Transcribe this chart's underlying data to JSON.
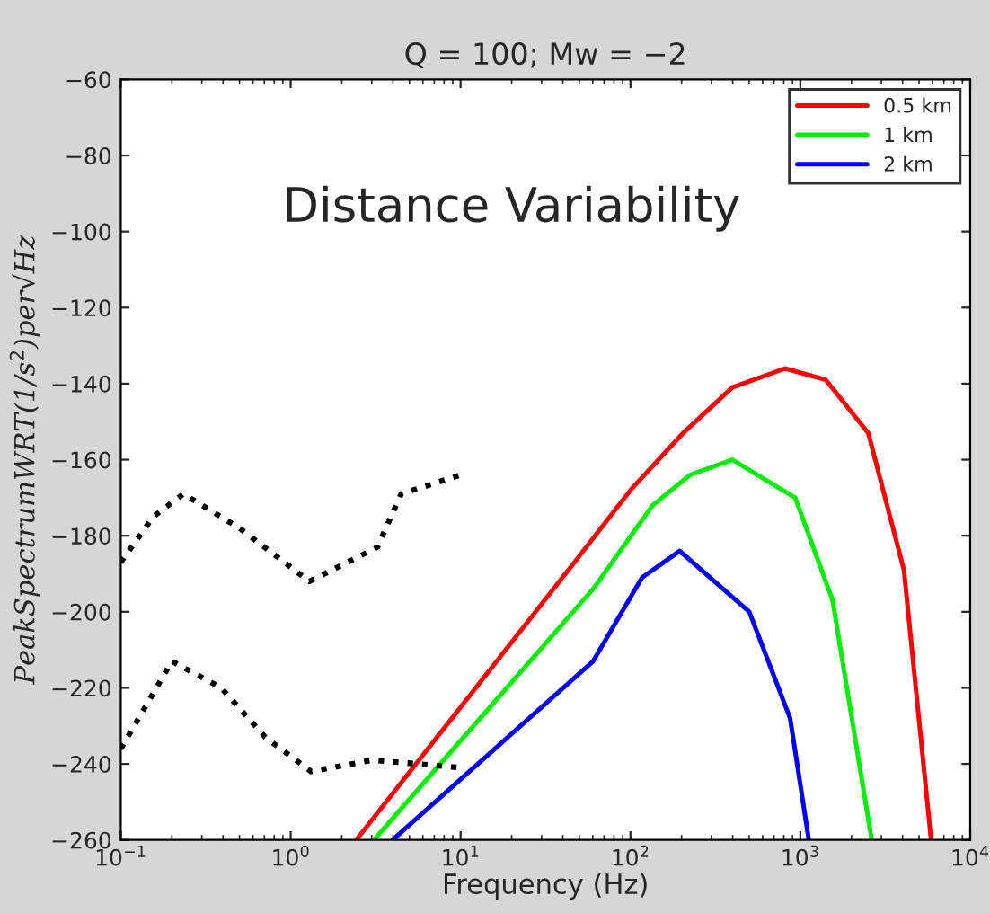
{
  "chart_data": {
    "type": "line",
    "title": "Q = 100; Mw = −2",
    "xlabel": "Frequency (Hz)",
    "ylabel": "PeakSpectrumWRT(1/s$^{2}$)per√Hz",
    "log": "x",
    "xlim": [
      0.1,
      10000
    ],
    "ylim": [
      -260,
      -60
    ],
    "xticks": [
      {
        "value": 0.1,
        "label": "10$^{−1}$"
      },
      {
        "value": 1,
        "label": "10$^{0}$"
      },
      {
        "value": 10,
        "label": "10$^{1}$"
      },
      {
        "value": 100,
        "label": "10$^{2}$"
      },
      {
        "value": 1000,
        "label": "10$^{3}$"
      },
      {
        "value": 10000,
        "label": "10$^{4}$"
      }
    ],
    "yticks": [
      {
        "value": -60,
        "label": "−60"
      },
      {
        "value": -80,
        "label": "−80"
      },
      {
        "value": -100,
        "label": "−100"
      },
      {
        "value": -120,
        "label": "−120"
      },
      {
        "value": -140,
        "label": "−140"
      },
      {
        "value": -160,
        "label": "−160"
      },
      {
        "value": -180,
        "label": "−180"
      },
      {
        "value": -200,
        "label": "−200"
      },
      {
        "value": -220,
        "label": "−220"
      },
      {
        "value": -240,
        "label": "−240"
      },
      {
        "value": -260,
        "label": "−260"
      }
    ],
    "grid": false,
    "legend": "top right",
    "marker": "none",
    "annotations": [
      "Distance Variability"
    ],
    "series": [
      {
        "name": "0.5 km",
        "color": "#ff0000",
        "line_style": "solid",
        "x": [
          2.43,
          5.25,
          46.8,
          100,
          204,
          398,
          813,
          1413,
          2512,
          4074,
          5888
        ],
        "values": [
          -260,
          -241,
          -187,
          -168,
          -153,
          -141,
          -136,
          -139,
          -153,
          -189,
          -260
        ]
      },
      {
        "name": "1 km",
        "color": "#00ee00",
        "line_style": "solid",
        "x": [
          3.09,
          60.3,
          135,
          224,
          398,
          933,
          1549,
          2630
        ],
        "values": [
          -260,
          -194,
          -172,
          -164,
          -160,
          -170,
          -197,
          -260
        ]
      },
      {
        "name": "2 km",
        "color": "#0000ff",
        "line_style": "solid",
        "x": [
          3.98,
          60.3,
          117,
          195,
          501,
          871,
          1122
        ],
        "values": [
          -260,
          -213,
          -191,
          -184,
          -200,
          -228,
          -260
        ]
      },
      {
        "color": "#000000",
        "line_style": "dotted",
        "x": [
          0.1,
          0.155,
          0.234,
          0.5,
          1.29,
          3.24,
          4.47,
          10
        ],
        "values": [
          -187,
          -175,
          -169,
          -178,
          -192,
          -183,
          -169,
          -164
        ]
      },
      {
        "color": "#000000",
        "line_style": "dotted",
        "x": [
          0.1,
          0.2,
          0.39,
          0.71,
          1.32,
          3.02,
          5.62,
          10
        ],
        "values": [
          -236,
          -213,
          -220,
          -233,
          -242,
          -239,
          -240,
          -241
        ]
      }
    ]
  }
}
